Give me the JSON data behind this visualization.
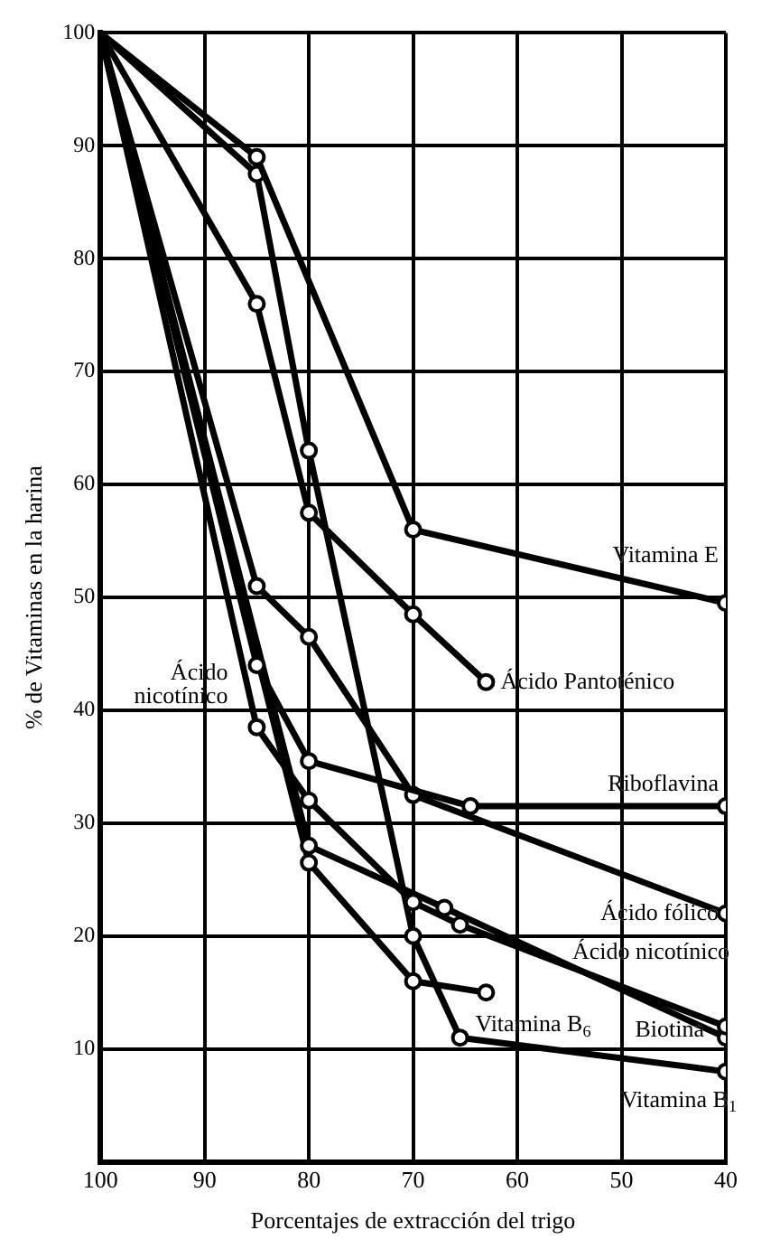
{
  "chart_data": {
    "type": "line",
    "xlabel": "Porcentajes de extracción del trigo",
    "ylabel": "% de Vitaminas en la harina",
    "xlim": [
      100,
      40
    ],
    "xticks": [
      100,
      90,
      80,
      70,
      60,
      50,
      40
    ],
    "ylim": [
      0,
      100
    ],
    "yticks": [
      10,
      20,
      30,
      40,
      50,
      60,
      70,
      80,
      90,
      100
    ],
    "grid": true,
    "legend": false,
    "marker": "circle",
    "line_style": "solid",
    "series": [
      {
        "name": "Vitamina E",
        "color": "#000000",
        "x": [
          100,
          85,
          70,
          40
        ],
        "values": [
          100,
          89,
          56,
          49.5
        ]
      },
      {
        "name": "Ácido Pantoténico",
        "color": "#000000",
        "x": [
          100,
          85,
          80,
          70,
          63
        ],
        "values": [
          100,
          76,
          57.5,
          48.5,
          42.5
        ]
      },
      {
        "name": "Riboflavina",
        "color": "#000000",
        "x": [
          100,
          85,
          80,
          64.5,
          40
        ],
        "values": [
          100,
          44,
          35.5,
          31.5,
          31.5
        ]
      },
      {
        "name": "Ácido fólico",
        "color": "#000000",
        "x": [
          100,
          85,
          80,
          70,
          40
        ],
        "values": [
          100,
          51,
          46.5,
          32.5,
          22
        ]
      },
      {
        "name": "Ácido nicotínico",
        "color": "#000000",
        "x": [
          100,
          85,
          80,
          70,
          65.5,
          40
        ],
        "values": [
          100,
          38.5,
          32,
          23,
          21,
          12
        ]
      },
      {
        "name": "Biotina",
        "color": "#000000",
        "x": [
          100,
          80,
          67,
          40
        ],
        "values": [
          100,
          28,
          22.5,
          11
        ]
      },
      {
        "name": "Vitamina B$_{6}$",
        "color": "#000000",
        "x": [
          100,
          80,
          70,
          63
        ],
        "values": [
          100,
          26.5,
          16,
          15
        ]
      },
      {
        "name": "Vitamina B$_{1}$",
        "color": "#000000",
        "x": [
          100,
          85,
          80,
          70,
          65.5,
          40
        ],
        "values": [
          100,
          87.5,
          63,
          20,
          11,
          8
        ]
      }
    ],
    "annotations": [
      {
        "text": "Ácido nicotínico",
        "x": 85,
        "y": 38.5
      }
    ]
  }
}
